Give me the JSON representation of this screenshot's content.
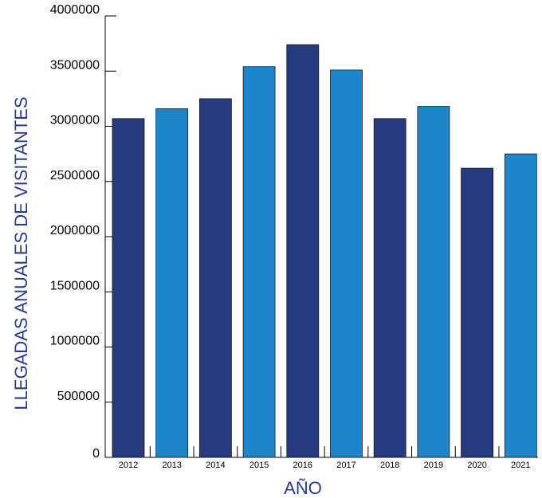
{
  "chart_data": {
    "type": "bar",
    "title": "",
    "xlabel": "AÑO",
    "ylabel": "LLEGADAS ANUALES DE VISITANTES",
    "categories": [
      "2012",
      "2013",
      "2014",
      "2015",
      "2016",
      "2017",
      "2018",
      "2019",
      "2020",
      "2021"
    ],
    "values": [
      3070000,
      3160000,
      3250000,
      3540000,
      3740000,
      3510000,
      3070000,
      3180000,
      2620000,
      2750000
    ],
    "ylim": [
      0,
      4000000
    ],
    "yticks": [
      0,
      500000,
      1000000,
      1500000,
      2000000,
      2500000,
      3000000,
      3500000,
      4000000
    ],
    "ytick_labels": [
      "0",
      "500000",
      "1000000",
      "1500000",
      "2000000",
      "2500000",
      "3000000",
      "3500000",
      "4000000"
    ],
    "grid": false,
    "legend": "none",
    "colors": {
      "bar_dark": "#263a7e",
      "bar_light": "#1e86c8",
      "axis_title": "#2b3a8c"
    },
    "bar_color_pattern": [
      "bar_dark",
      "bar_light",
      "bar_dark",
      "bar_light",
      "bar_dark",
      "bar_light",
      "bar_dark",
      "bar_light",
      "bar_dark",
      "bar_light"
    ]
  }
}
